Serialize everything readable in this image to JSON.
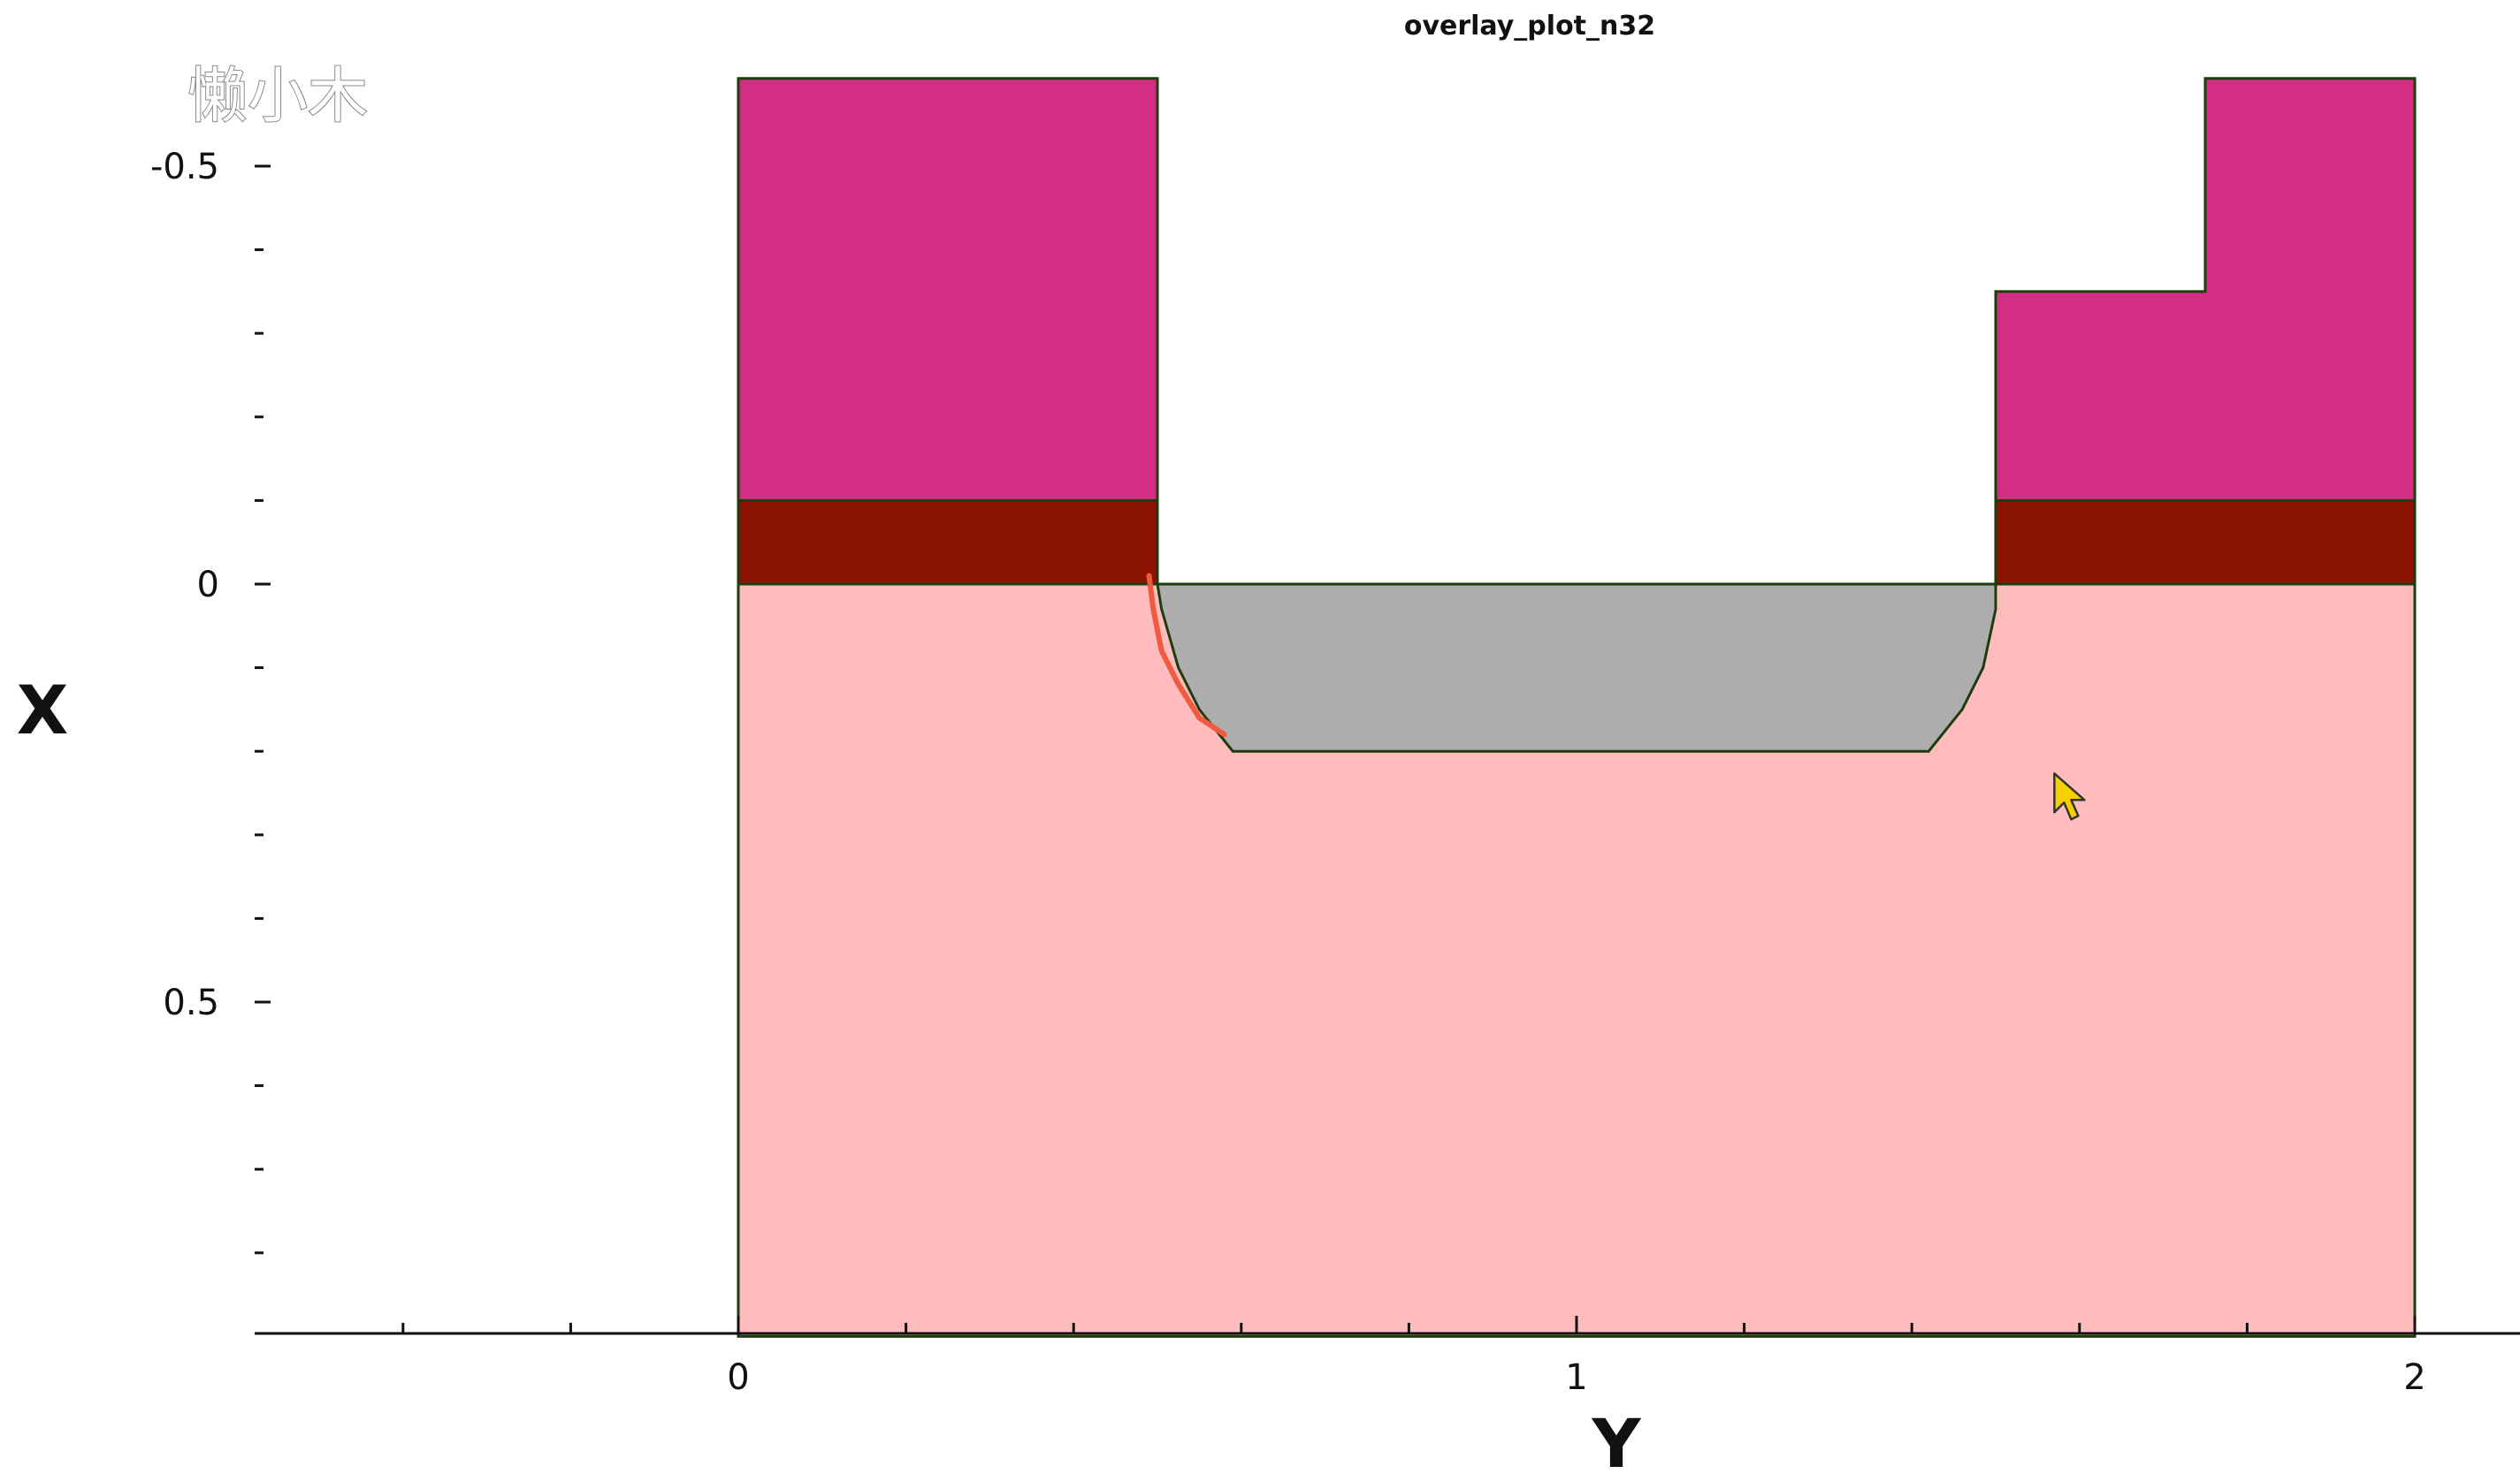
{
  "watermark": "懒小木",
  "chart_data": {
    "type": "area",
    "title": "overlay_plot_n32",
    "xlabel": "Y",
    "ylabel": "X",
    "xlim": [
      -0.58,
      2.1
    ],
    "ylim": [
      0.9,
      -0.61
    ],
    "y_axis_inverted": true,
    "x_ticks": [
      0,
      1,
      2
    ],
    "x_tick_labels": [
      "0",
      "1",
      "2"
    ],
    "y_ticks": [
      -0.5,
      0,
      0.5
    ],
    "y_tick_labels": [
      "-0.5",
      "0",
      "0.5"
    ],
    "x_minor_step": 0.2,
    "y_minor_step": 0.1,
    "grid": false,
    "legend": "none",
    "regions": [
      {
        "name": "substrate",
        "color": "#ffbcbc",
        "points": [
          [
            0,
            0
          ],
          [
            0.5,
            0
          ],
          [
            0.5,
            0.0
          ],
          [
            1.5,
            0
          ],
          [
            2,
            0
          ],
          [
            2,
            0.9
          ],
          [
            0,
            0.9
          ]
        ]
      },
      {
        "name": "trench-fill",
        "color": "#adadad",
        "points": [
          [
            0.5,
            0
          ],
          [
            1.5,
            0
          ],
          [
            1.5,
            0.03
          ],
          [
            1.485,
            0.1
          ],
          [
            1.46,
            0.15
          ],
          [
            1.42,
            0.2
          ],
          [
            0.59,
            0.2
          ],
          [
            0.55,
            0.15
          ],
          [
            0.525,
            0.1
          ],
          [
            0.505,
            0.03
          ],
          [
            0.5,
            0
          ]
        ]
      },
      {
        "name": "dark-layer-left",
        "color": "#8b1304",
        "points": [
          [
            0,
            0
          ],
          [
            0.5,
            0
          ],
          [
            0.5,
            -0.1
          ],
          [
            0,
            -0.1
          ]
        ]
      },
      {
        "name": "dark-layer-right",
        "color": "#8b1304",
        "points": [
          [
            1.5,
            0
          ],
          [
            2,
            0
          ],
          [
            2,
            -0.1
          ],
          [
            1.5,
            -0.1
          ]
        ]
      },
      {
        "name": "top-layer-left",
        "color": "#d22e84",
        "points": [
          [
            0,
            -0.1
          ],
          [
            0.5,
            -0.1
          ],
          [
            0.5,
            -0.605
          ],
          [
            0,
            -0.605
          ]
        ]
      },
      {
        "name": "top-layer-right",
        "color": "#d22e84",
        "points": [
          [
            1.5,
            -0.1
          ],
          [
            2,
            -0.1
          ],
          [
            2,
            -0.605
          ],
          [
            1.75,
            -0.605
          ],
          [
            1.75,
            -0.35
          ],
          [
            1.5,
            -0.35
          ]
        ]
      }
    ],
    "annotation_stroke": {
      "name": "red-hand-drawn-mark",
      "color": "#f05a40",
      "points": [
        [
          0.49,
          -0.01
        ],
        [
          0.495,
          0.03
        ],
        [
          0.505,
          0.08
        ],
        [
          0.525,
          0.12
        ],
        [
          0.55,
          0.16
        ],
        [
          0.58,
          0.18
        ]
      ]
    },
    "cursor_position": [
      1.57,
      0.235
    ]
  },
  "colors": {
    "axis": "#111111",
    "outline": "#1d3d0e",
    "cursor_fill": "#f5d000",
    "cursor_stroke": "#333333"
  }
}
